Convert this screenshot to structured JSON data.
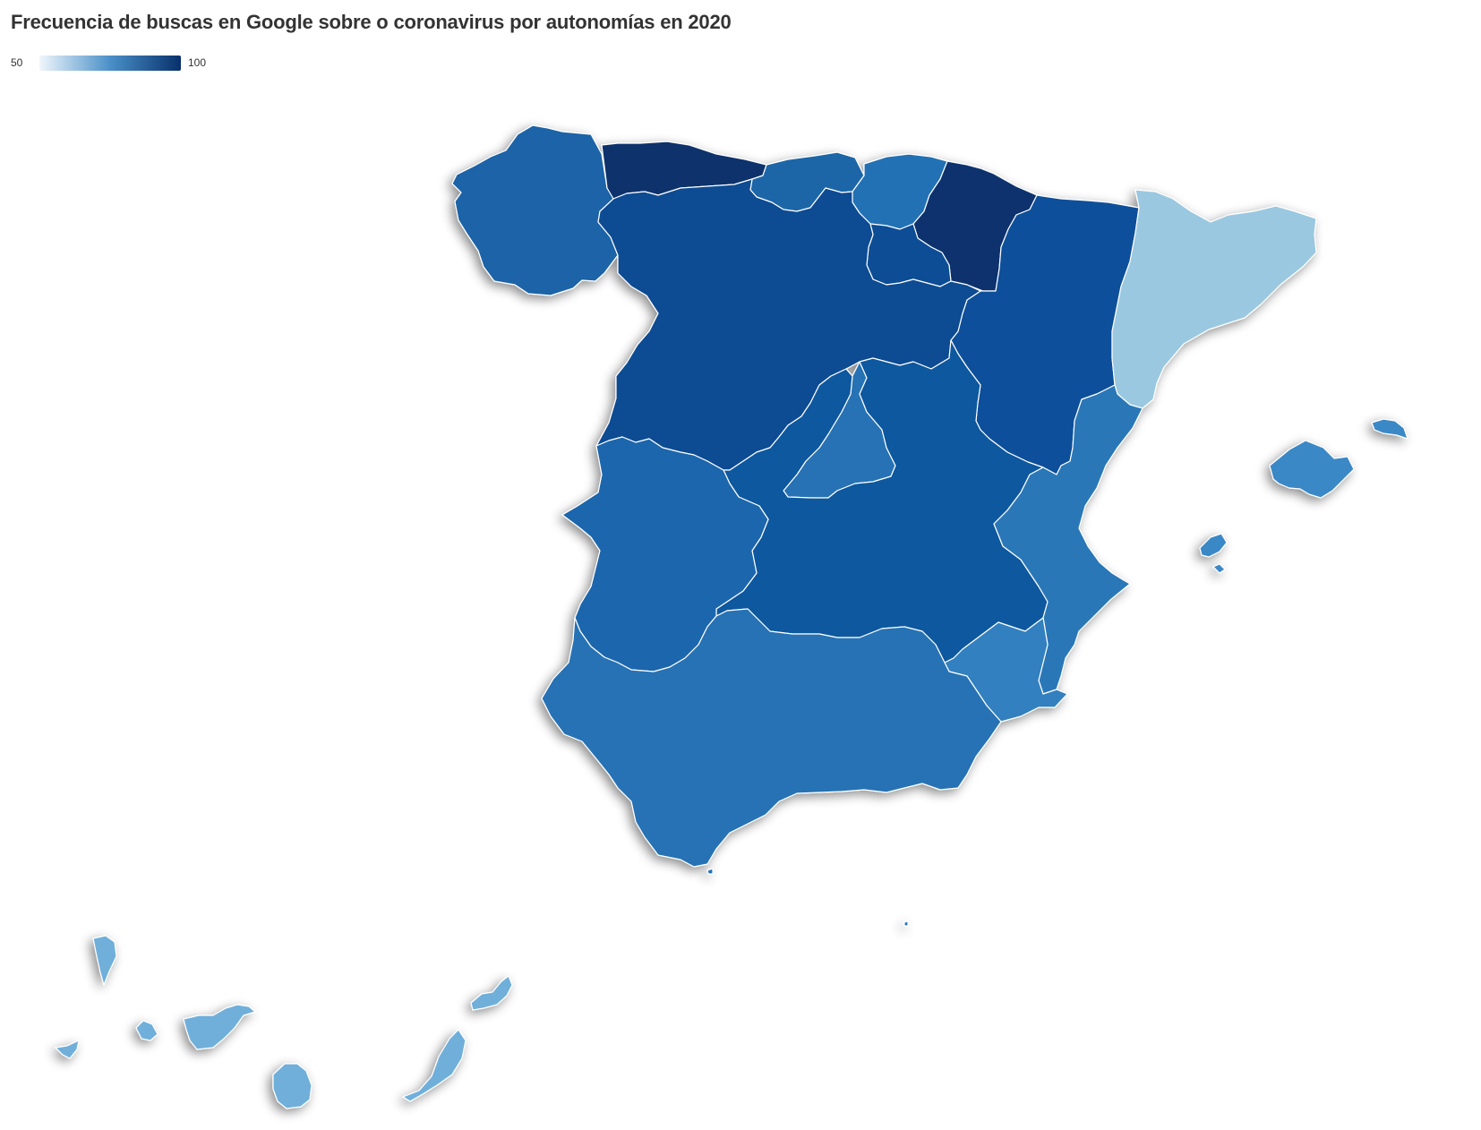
{
  "title": "Frecuencia de buscas en Google sobre o coronavirus por autonomías en 2020",
  "legend": {
    "min_label": "50",
    "max_label": "100",
    "color_low": "#f0f6fc",
    "color_mid": "#4a90c8",
    "color_high": "#08306b"
  },
  "map_data": {
    "type": "choropleth",
    "regions": [
      {
        "id": "galicia",
        "color": "#1a63a8"
      },
      {
        "id": "asturias",
        "color": "#0c316c"
      },
      {
        "id": "cantabria",
        "color": "#1a66a8"
      },
      {
        "id": "pais-vasco",
        "color": "#2471b4"
      },
      {
        "id": "navarra",
        "color": "#0b336e"
      },
      {
        "id": "la-rioja",
        "color": "#0e4e95"
      },
      {
        "id": "aragon",
        "color": "#10509a"
      },
      {
        "id": "cataluna",
        "color": "#9ac8e0"
      },
      {
        "id": "castilla-y-leon",
        "color": "#0e4b93"
      },
      {
        "id": "madrid",
        "color": "#2672b5"
      },
      {
        "id": "castilla-la-mancha",
        "color": "#11589f"
      },
      {
        "id": "extremadura",
        "color": "#1b66ad"
      },
      {
        "id": "comunidad-valenciana",
        "color": "#2a77b8"
      },
      {
        "id": "murcia",
        "color": "#3080bf"
      },
      {
        "id": "andalucia",
        "color": "#2672b5"
      },
      {
        "id": "islas-baleares",
        "color": "#3b88c7"
      },
      {
        "id": "islas-canarias",
        "color": "#6fafda"
      }
    ]
  }
}
